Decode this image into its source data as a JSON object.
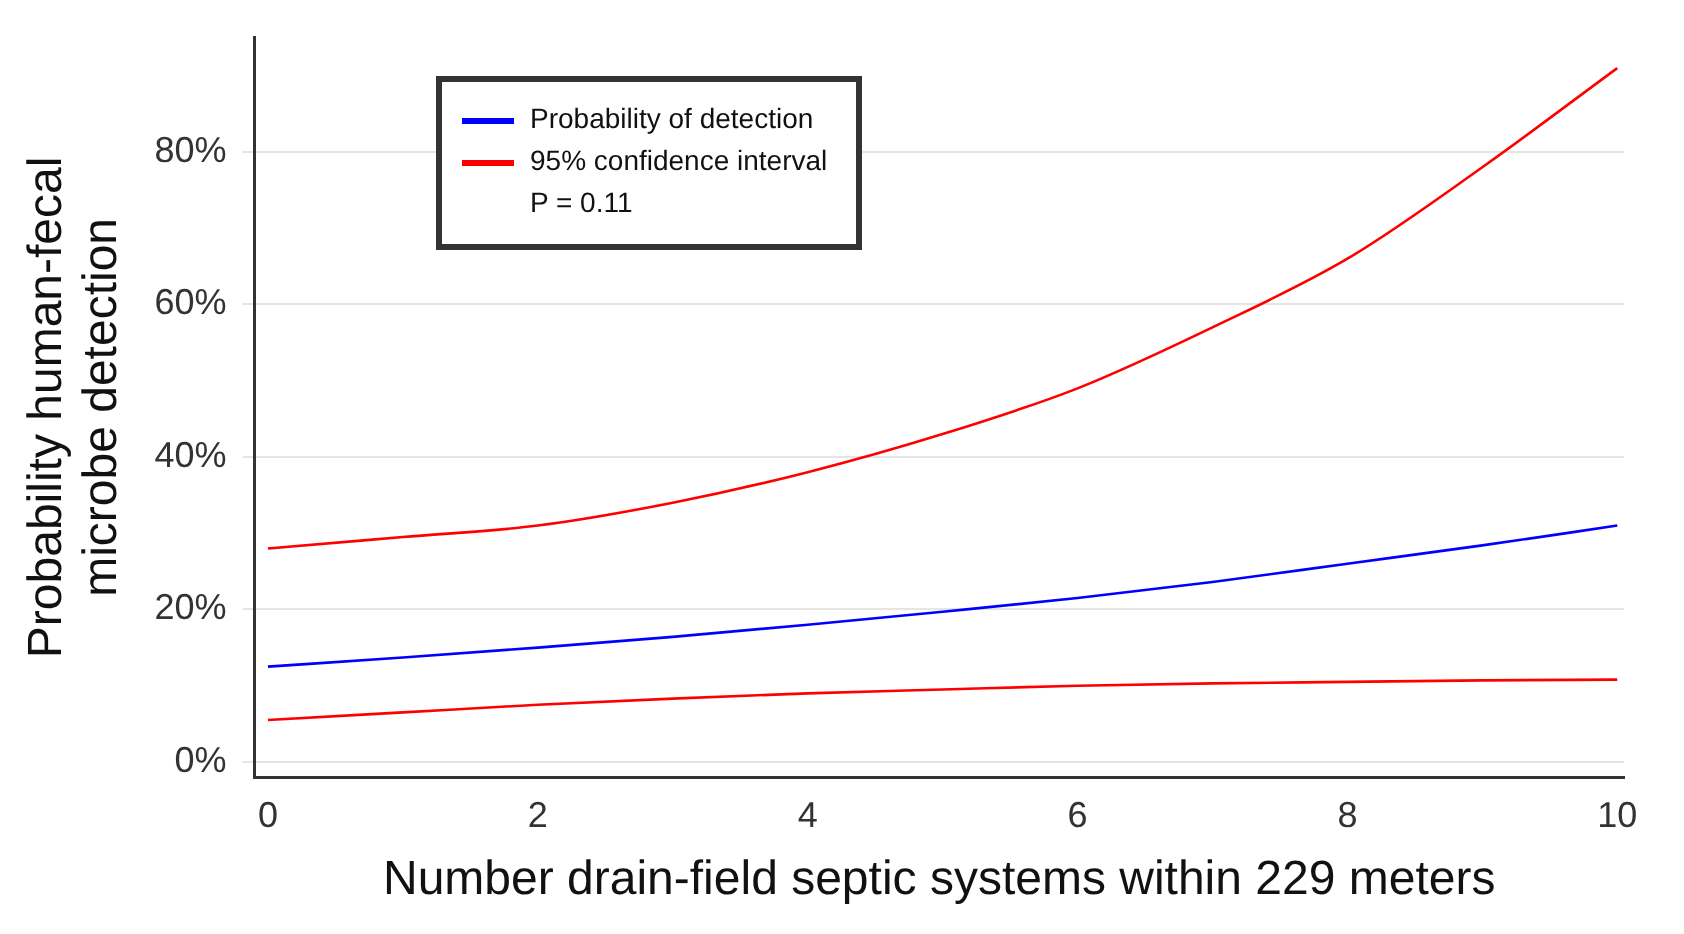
{
  "chart_data": {
    "type": "line",
    "xlabel": "Number drain-field septic systems within 229 meters",
    "ylabel": "Probability human-fecal\nmicrobe detection",
    "x": [
      0,
      1,
      2,
      3,
      4,
      5,
      6,
      7,
      8,
      9,
      10
    ],
    "series": [
      {
        "name": "Probability of detection",
        "color": "#0000ff",
        "values": [
          12.5,
          13.7,
          15,
          16.4,
          18,
          19.7,
          21.5,
          23.6,
          26,
          28.4,
          31
        ]
      },
      {
        "name": "95% confidence interval",
        "color": "#ff0000",
        "values": [
          28,
          29.5,
          31,
          34,
          38,
          43,
          49,
          57,
          66,
          78,
          91
        ]
      },
      {
        "color": "#ff0000",
        "values": [
          5.5,
          6.5,
          7.5,
          8.3,
          9,
          9.5,
          10,
          10.3,
          10.5,
          10.7,
          10.8
        ]
      }
    ],
    "xlim": [
      -0.1,
      10.05
    ],
    "xticks": [
      0,
      2,
      4,
      6,
      8,
      10
    ],
    "ylim": [
      -2,
      95
    ],
    "yticks": [
      {
        "value": 0,
        "label": "0%"
      },
      {
        "value": 20,
        "label": "20%"
      },
      {
        "value": 40,
        "label": "40%"
      },
      {
        "value": 60,
        "label": "60%"
      },
      {
        "value": 80,
        "label": "80%"
      }
    ],
    "grid": "y",
    "legend": "top left",
    "marker": "none",
    "line_style": "solid",
    "annotations": [
      "P = 0.11"
    ]
  }
}
